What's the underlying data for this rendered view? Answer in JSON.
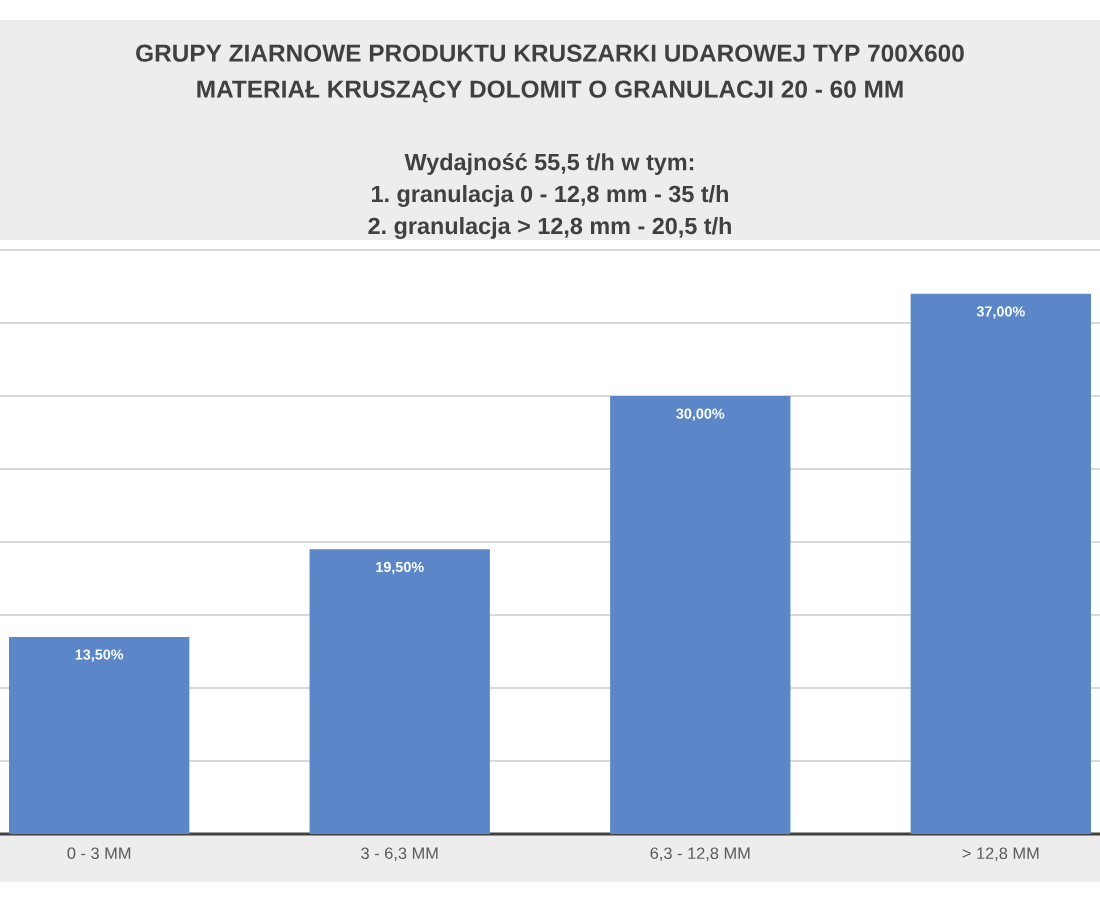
{
  "chart_data": {
    "type": "bar",
    "title": "GRUPY ZIARNOWE PRODUKTU KRUSZARKI UDAROWEJ TYP  700X600 MATERIAŁ KRUSZĄCY DOLOMIT O GRANULACJI 20 - 60 MM",
    "subtitle": "Wydajność 55,5 t/h w tym:",
    "annotations": [
      "1. granulacja 0 - 12,8 mm - 35 t/h",
      "2. granulacja > 12,8 mm - 20,5 t/h"
    ],
    "categories": [
      "0 - 3 MM",
      "3 - 6,3 MM",
      "6,3 - 12,8 MM",
      "> 12,8 MM"
    ],
    "values": [
      13.5,
      19.5,
      30,
      37
    ],
    "value_labels": [
      "13,50%",
      "19,50%",
      "30,00%",
      "37,00%"
    ],
    "color": "#5b87c9",
    "ylim": [
      0,
      40
    ],
    "yticks": [
      {
        "value": 5,
        "label": null
      },
      {
        "value": 10,
        "label": null
      },
      {
        "value": 15,
        "label": null
      },
      {
        "value": 20,
        "label": null
      },
      {
        "value": 25,
        "label": null
      },
      {
        "value": 30,
        "label": null
      },
      {
        "value": 35,
        "label": null
      },
      {
        "value": 40,
        "label": null
      }
    ],
    "grid": "y",
    "tick_labels": "x"
  }
}
